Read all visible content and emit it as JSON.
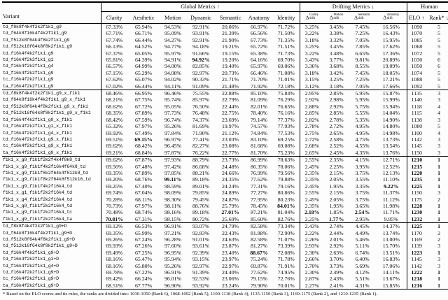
{
  "table": {
    "header": {
      "variant_label": "Variant",
      "groups": [
        {
          "label": "Global Metrics ↑",
          "cols": 7
        },
        {
          "label": "Drifting Metrics ↓",
          "cols": 4
        },
        {
          "label": "Human",
          "cols": 2
        }
      ],
      "global_cols": [
        "Clarity",
        "Aesthetic",
        "Motion",
        "Dynamic",
        "Semantic",
        "Anatomy",
        "Identity"
      ],
      "drift_cols": [
        {
          "symbol": "Δ",
          "sup": "Clarity",
          "sub": "drift"
        },
        {
          "symbol": "Δ",
          "sup": "Motion",
          "sub": "drift"
        },
        {
          "symbol": "Δ",
          "sup": "Semantic",
          "sub": "drift"
        },
        {
          "symbol": "Δ",
          "sup": "Anatomy",
          "sub": "drift"
        }
      ],
      "human_cols": [
        "ELO ↑",
        "Rank* ↓"
      ]
    },
    "groups": [
      {
        "rows": [
          {
            "v": "td_f8k8f4k4f2k2f1k1_g9",
            "vals": [
              "67.33%",
              "65.94%",
              "94.53%",
              "92.91%",
              "20.06%",
              "66.97%",
              "71.72%",
              "3.25%",
              "3.45%",
              "7.45%",
              "16.56%",
              "1090",
              "5"
            ],
            "bold": []
          },
          {
            "v": "td_f64k8f16k4f4k2f1k1_g9",
            "vals": [
              "67.71%",
              "66.71%",
              "95.09%",
              "93.91%",
              "21.39%",
              "66.56%",
              "71.50%",
              "3.22%",
              "3.38%",
              "7.25%",
              "16.43%",
              "1070",
              "5"
            ],
            "bold": []
          },
          {
            "v": "td_f512k8f64k4f8k2f1k1_g9",
            "vals": [
              "67.74%",
              "66.44%",
              "94.27%",
              "92.91%",
              "21.90%",
              "67.73%",
              "71.35%",
              "3.18%",
              "3.32%",
              "7.05%",
              "15.95%",
              "1085",
              "5"
            ],
            "bold": []
          },
          {
            "v": "td_f512k16f64k8f8k2f1k1_g9",
            "vals": [
              "66.13%",
              "64.52%",
              "94.77%",
              "94.18%",
              "19.21%",
              "65.72%",
              "71.51%",
              "3.25%",
              "3.45%",
              "7.85%",
              "17.62%",
              "1068",
              "5"
            ],
            "bold": []
          },
          {
            "v": "td_f16k4f4k2f1k1_g9",
            "vals": [
              "67.37%",
              "65.05%",
              "95.97%",
              "91.66%",
              "19.15%",
              "65.38%",
              "71.73%",
              "3.22%",
              "3.48%",
              "6.65%",
              "17.36%",
              "1072",
              "5"
            ],
            "bold": []
          },
          {
            "v": "td_f16k4f2k2f1k1_g1",
            "vals": [
              "65.81%",
              "64.39%",
              "94.91%",
              "94.92%",
              "19.20%",
              "64.16%",
              "69.70%",
              "3.43%",
              "3.77%",
              "9.81%",
              "20.89%",
              "1030",
              "6"
            ],
            "bold": [
              3
            ]
          },
          {
            "v": "td_f16k4f2k2f1k1_g4",
            "vals": [
              "66.57%",
              "64.99%",
              "94.00%",
              "82.85%",
              "19.40%",
              "65.97%",
              "69.06%",
              "3.36%",
              "3.68%",
              "8.55%",
              "19.09%",
              "1050",
              "6"
            ],
            "bold": []
          },
          {
            "v": "td_f16k4f2k2f1k1_g9",
            "vals": [
              "67.15%",
              "65.29%",
              "94.08%",
              "92.97%",
              "20.73%",
              "66.46%",
              "71.08%",
              "3.18%",
              "3.42%",
              "7.45%",
              "18.05%",
              "1074",
              "5"
            ],
            "bold": []
          },
          {
            "v": "tc_f16k4f2k2f1k1_g9",
            "vals": [
              "67.62%",
              "65.07%",
              "94.02%",
              "90.33%",
              "21.71%",
              "71.70%",
              "71.01%",
              "3.15%",
              "3.25%",
              "7.25%",
              "17.21%",
              "1088",
              "5"
            ],
            "bold": []
          },
          {
            "v": "ta_f16k4f2k2f1k1_g9",
            "vals": [
              "67.02%",
              "66.44%",
              "94.11%",
              "91.09%",
              "21.48%",
              "71.92%",
              "72.18%",
              "3.12%",
              "3.18%",
              "7.05%",
              "17.66%",
              "1092",
              "5"
            ],
            "bold": []
          }
        ]
      },
      {
        "rows": [
          {
            "v": "td_f8k8f4k4f2k2f1k1_g9_x_f1k1",
            "vals": [
              "68.46%",
              "66.95%",
              "96.46%",
              "75.55%",
              "22.88%",
              "85.10%",
              "75.84%",
              "2.95%",
              "2.85%",
              "5.95%",
              "15.87%",
              "1135",
              "3"
            ],
            "bold": []
          },
          {
            "v": "td_f64k8f16k4f4k2f1k1_g9_x_f1k1",
            "vals": [
              "68.21%",
              "67.75%",
              "95.74%",
              "85.97%",
              "22.79%",
              "81.09%",
              "76.29%",
              "2.92%",
              "2.98%",
              "5.95%",
              "15.99%",
              "1140",
              "3"
            ],
            "bold": []
          },
          {
            "v": "td_f512k8f64k4f8k2f1k1_g9_x_f1k1",
            "vals": [
              "68.62%",
              "67.72%",
              "95.05%",
              "76.50%",
              "22.44%",
              "82.01%",
              "76.65%",
              "2.88%",
              "2.92%",
              "5.75%",
              "15.94%",
              "1118",
              "4"
            ],
            "bold": []
          },
          {
            "v": "td_f512k16f64k8f8k2f1k1_g9_x_f1k1",
            "vals": [
              "68.35%",
              "67.89%",
              "97.73%",
              "76.48%",
              "22.75%",
              "78.40%",
              "76.16%",
              "2.85%",
              "2.85%",
              "5.55%",
              "14.04%",
              "1115",
              "4"
            ],
            "bold": []
          },
          {
            "v": "td_f16k4f4k2f1k1_g9_x_f1k1",
            "vals": [
              "68.42%",
              "67.59%",
              "96.74%",
              "74.37%",
              "23.69%",
              "79.14%",
              "77.37%",
              "2.82%",
              "2.78%",
              "5.35%",
              "14.90%",
              "1138",
              "3"
            ],
            "bold": []
          },
          {
            "v": "td_f16k4f2k2f1k1_g1_x_f1k1",
            "vals": [
              "65.32%",
              "67.97%",
              "95.26%",
              "81.69%",
              "19.97%",
              "74.57%",
              "77.93%",
              "2.78%",
              "2.72%",
              "4.95%",
              "14.80%",
              "1080",
              "5"
            ],
            "bold": []
          },
          {
            "v": "td_f16k4f2k2f1k1_g4_x_f1k1",
            "vals": [
              "69.92%",
              "67.49%",
              "97.84%",
              "71.90%",
              "21.12%",
              "74.84%",
              "77.53%",
              "2.75%",
              "2.65%",
              "4.95%",
              "14.98%",
              "1100",
              "4"
            ],
            "bold": []
          },
          {
            "v": "td_f16k4f2k2f1k1_g9_x_f1k1",
            "vals": [
              "69.51%",
              "69.15%",
              "96.97%",
              "77.41%",
              "23.03%",
              "83.10%",
              "69.25%",
              "2.72%",
              "2.58%",
              "4.75%",
              "13.73%",
              "1142",
              "3"
            ],
            "bold": [
              1
            ]
          },
          {
            "v": "tc_f16k4f2k2f1k1_g9_x_f1k1",
            "vals": [
              "69.62%",
              "68.42%",
              "96.45%",
              "82.27%",
              "23.08%",
              "81.68%",
              "69.08%",
              "2.68%",
              "2.52%",
              "4.55%",
              "13.54%",
              "1145",
              "3"
            ],
            "bold": []
          },
          {
            "v": "ta_f16k4f2k2f1k1_g9_x_f1k1",
            "vals": [
              "69.21%",
              "68.84%",
              "97.87%",
              "76.22%",
              "22.77%",
              "81.70%",
              "75.23%",
              "2.65%",
              "2.45%",
              "4.35%",
              "13.76%",
              "1150",
              "3"
            ],
            "bold": []
          }
        ]
      },
      {
        "rows": [
          {
            "v": "f1k1_x_g9_f1k1f2k2f4k4f8k8_td",
            "vals": [
              "69.62%",
              "67.87%",
              "97.93%",
              "88.79%",
              "23.73%",
              "86.99%",
              "78.63%",
              "2.55%",
              "2.35%",
              "4.15%",
              "12.71%",
              "1210",
              "1"
            ],
            "bold": [
              11,
              12
            ]
          },
          {
            "v": "f1k1_x_g9_f1k1f4k2f16k4f64k8_td",
            "vals": [
              "69.56%",
              "67.48%",
              "97.42%",
              "86.68%",
              "24.48%",
              "86.35%",
              "78.06%",
              "2.45%",
              "2.25%",
              "3.95%",
              "12.52%",
              "1215",
              "1"
            ],
            "bold": [
              11,
              12
            ]
          },
          {
            "v": "f1k1_x_g9_f1k1f8k2f64k4f512k8_td",
            "vals": [
              "69.35%",
              "67.89%",
              "97.85%",
              "88.21%",
              "24.66%",
              "76.99%",
              "79.56%",
              "2.35%",
              "2.15%",
              "3.75%",
              "12.13%",
              "1220",
              "1"
            ],
            "bold": [
              11,
              12
            ]
          },
          {
            "v": "f1k1_x_g9_f1k1f8k2f64k8f512k16_td",
            "vals": [
              "69.20%",
              "68.76%",
              "99.11%",
              "89.18%",
              "24.35%",
              "77.62%",
              "79.88%",
              "2.35%",
              "2.05%",
              "3.55%",
              "11.10%",
              "1235",
              "1"
            ],
            "bold": [
              2,
              11,
              12
            ]
          },
          {
            "v": "f1k1_x_g9_f1k1f4k2f16k4_td",
            "vals": [
              "69.25%",
              "67.40%",
              "98.59%",
              "89.01%",
              "24.24%",
              "77.31%",
              "79.16%",
              "2.45%",
              "1.95%",
              "3.35%",
              "9.22%",
              "1225",
              "1"
            ],
            "bold": [
              10,
              11,
              12
            ]
          },
          {
            "v": "f1k1_x_g1_f1k1f2k2f16k4_td",
            "vals": [
              "69.74%",
              "67.04%",
              "98.09%",
              "79.85%",
              "24.89%",
              "77.27%",
              "80.86%",
              "2.55%",
              "2.15%",
              "3.75%",
              "11.37%",
              "1150",
              "3"
            ],
            "bold": []
          },
          {
            "v": "f1k1_x_g4_f1k1f2k2f16k4_td",
            "vals": [
              "70.28%",
              "68.11%",
              "98.30%",
              "79.45%",
              "24.87%",
              "77.95%",
              "80.23%",
              "2.45%",
              "2.05%",
              "3.75%",
              "11.12%",
              "1175",
              "2"
            ],
            "bold": []
          },
          {
            "v": "f1k1_x_g9_f1k1f2k2f16k4_td",
            "vals": [
              "70.73%",
              "67.97%",
              "98.11%",
              "88.76%",
              "25.79%",
              "78.45%",
              "84.01%",
              "2.35%",
              "1.95%",
              "3.65%",
              "11.98%",
              "1228",
              "1"
            ],
            "bold": [
              6,
              11,
              12
            ]
          },
          {
            "v": "f1k1_x_g9_f1k1f2k2f16k4_tc",
            "vals": [
              "70.48%",
              "68.74%",
              "98.16%",
              "89.18%",
              "27.01%",
              "87.21%",
              "81.04%",
              "2.18%",
              "1.85%",
              "2.54%",
              "11.71%",
              "1230",
              "1"
            ],
            "bold": [
              4,
              7,
              9,
              11,
              12
            ]
          },
          {
            "v": "f1k1_x_g9_f1k1f2k2f16k4_ta",
            "vals": [
              "70.81%",
              "67.31%",
              "98.15%",
              "80.72%",
              "25.60%",
              "85.60%",
              "82.76%",
              "2.25%",
              "1.77%",
              "2.95%",
              "9.85%",
              "1232",
              "1"
            ],
            "bold": [
              0,
              8,
              11,
              12
            ]
          }
        ]
      },
      {
        "rows": [
          {
            "v": "td_f8k8f4k4f2k2f1k1_g9+D",
            "vals": [
              "69.12%",
              "66.53%",
              "96.91%",
              "93.07%",
              "24.79%",
              "82.58%",
              "73.34%",
              "2.43%",
              "2.74%",
              "4.45%",
              "14.37%",
              "1225",
              "1"
            ],
            "bold": [
              11,
              12
            ]
          },
          {
            "v": "td_f64k8f16k4f4k2f1k1_g9+D",
            "vals": [
              "69.35%",
              "65.99%",
              "97.21%",
              "92.83%",
              "22.43%",
              "81.88%",
              "72.90%",
              "2.22%",
              "2.44%",
              "4.49%",
              "13.74%",
              "1170",
              "2"
            ],
            "bold": []
          },
          {
            "v": "td_f512k8f64k4f8k2f1k1_g9+D",
            "vals": [
              "69.26%",
              "67.24%",
              "96.28%",
              "91.01%",
              "24.63%",
              "82.58%",
              "71.07%",
              "2.26%",
              "2.01%",
              "5.46%",
              "13.00%",
              "1169",
              "2"
            ],
            "bold": []
          },
          {
            "v": "td_f512k16f64k8f8k2f1k1_g9+D",
            "vals": [
              "69.93%",
              "67.26%",
              "97.60%",
              "93.61%",
              "23.87%",
              "81.27%",
              "73.39%",
              "2.93%",
              "2.92%",
              "5.11%",
              "15.70%",
              "1139",
              "3"
            ],
            "bold": []
          },
          {
            "v": "td_f16k4f4k2f1k1_g9+D",
            "vals": [
              "69.49%",
              "67.25%",
              "96.95%",
              "92.39%",
              "23.40%",
              "88.67%",
              "72.08%",
              "2.30%",
              "2.63%",
              "6.74%",
              "13.51%",
              "1223",
              "1"
            ],
            "bold": [
              5,
              11,
              12
            ]
          },
          {
            "v": "td_f16k4f2k2f1k1_g1+D",
            "vals": [
              "68.16%",
              "65.47%",
              "95.94%",
              "93.15%",
              "23.97%",
              "75.24%",
              "71.78%",
              "2.66%",
              "3.70%",
              "6.40%",
              "16.83%",
              "1145",
              "3"
            ],
            "bold": []
          },
          {
            "v": "td_f16k4f2k2f1k1_g4+D",
            "vals": [
              "68.16%",
              "65.80%",
              "95.26%",
              "92.97%",
              "22.97%",
              "69.87%",
              "71.91%",
              "2.70%",
              "3.73%",
              "5.69%",
              "17.06%",
              "1142",
              "3"
            ],
            "bold": []
          },
          {
            "v": "td_f16k4f2k2f1k1_g9+D",
            "vals": [
              "69.78%",
              "67.22%",
              "96.91%",
              "91.39%",
              "24.40%",
              "77.62%",
              "74.95%",
              "2.30%",
              "2.49%",
              "4.12%",
              "14.11%",
              "1222",
              "1"
            ],
            "bold": [
              11,
              12
            ]
          },
          {
            "v": "tc_f16k4f2k2f1k1_g9+D",
            "vals": [
              "69.42%",
              "66.24%",
              "96.01%",
              "92.53%",
              "23.06%",
              "79.15%",
              "72.76%",
              "2.87%",
              "2.43%",
              "5.51%",
              "13.67%",
              "1218",
              "1"
            ],
            "bold": [
              11,
              12
            ]
          },
          {
            "v": "ta_f16k4f2k2f1k1_g9+D",
            "vals": [
              "68.51%",
              "67.77%",
              "96.90%",
              "93.92%",
              "23.24%",
              "79.90%",
              "70.01%",
              "2.27%",
              "2.41%",
              "4.31%",
              "15.85%",
              "1216",
              "1"
            ],
            "bold": [
              11,
              12
            ]
          }
        ]
      }
    ],
    "footnote": "* Based on the ELO scores and tie rules, the ranks are divided into: 1030-1050 (Rank 6), 1068-1092 (Rank 5), 1100-1118 (Rank 4), 1135-1150 (Rank 3), 1169-1175 (Rank 2), and 1210-1235 (Rank 1)."
  }
}
